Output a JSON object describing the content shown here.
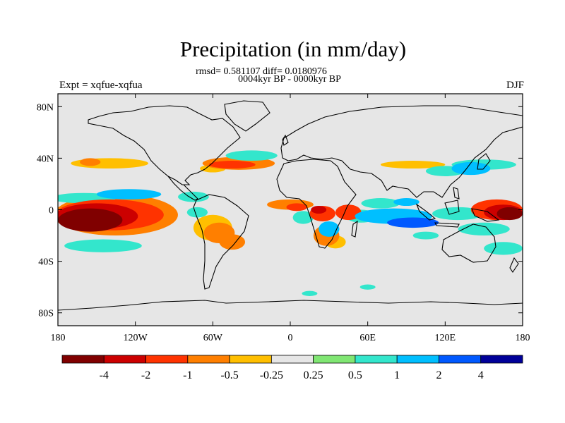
{
  "title": "Precipitation (in mm/day)",
  "subtitle": "rmsd= 0.581107 diff= 0.0180976",
  "experiment_period": "0004kyr BP - 0000kyr BP",
  "left_label": "Expt = xqfue-xqfua",
  "right_label": "DJF",
  "colors": {
    "ocean": "#e6e6e6",
    "coast": "#000000",
    "frame": "#000000"
  },
  "chart_data": {
    "type": "heatmap",
    "title": "Precipitation (in mm/day)",
    "projection": "cylindrical-equidistant",
    "lon_range": [
      -180,
      180
    ],
    "lat_range": [
      -90,
      90
    ],
    "lon_ticks": [
      {
        "value": -180,
        "label": "180"
      },
      {
        "value": -120,
        "label": "120W"
      },
      {
        "value": -60,
        "label": "60W"
      },
      {
        "value": 0,
        "label": "0"
      },
      {
        "value": 60,
        "label": "60E"
      },
      {
        "value": 120,
        "label": "120E"
      },
      {
        "value": 180,
        "label": "180"
      }
    ],
    "lat_ticks": [
      {
        "value": 80,
        "label": "80N"
      },
      {
        "value": 40,
        "label": "40N"
      },
      {
        "value": 0,
        "label": "0"
      },
      {
        "value": -40,
        "label": "40S"
      },
      {
        "value": -80,
        "label": "80S"
      }
    ],
    "colorbar": {
      "colors": [
        "#800000",
        "#cc0000",
        "#ff3300",
        "#ff7f00",
        "#ffbf00",
        "#e6e6e6",
        "#80e673",
        "#33e6cc",
        "#00bfff",
        "#0059ff",
        "#000099"
      ],
      "labels": [
        "-4",
        "-2",
        "-1",
        "-0.5",
        "-0.25",
        "0.25",
        "0.5",
        "1",
        "2",
        "4"
      ]
    },
    "anomaly_regions": [
      {
        "lon": -155,
        "lat": -8,
        "rx": 25,
        "ry": 9,
        "level": -4
      },
      {
        "lon": -150,
        "lat": -5,
        "rx": 32,
        "ry": 10,
        "level": -2
      },
      {
        "lon": -140,
        "lat": -4,
        "rx": 42,
        "ry": 12,
        "level": -1
      },
      {
        "lon": -135,
        "lat": -4,
        "rx": 48,
        "ry": 16,
        "level": -0.5
      },
      {
        "lon": -160,
        "lat": 9,
        "rx": 25,
        "ry": 4,
        "level": 0.5
      },
      {
        "lon": -125,
        "lat": 12,
        "rx": 25,
        "ry": 4,
        "level": 1
      },
      {
        "lon": -145,
        "lat": -28,
        "rx": 30,
        "ry": 5,
        "level": 0.5
      },
      {
        "lon": -140,
        "lat": 36,
        "rx": 30,
        "ry": 4,
        "level": -0.25
      },
      {
        "lon": -155,
        "lat": 37,
        "rx": 8,
        "ry": 3,
        "level": -0.5
      },
      {
        "lon": -40,
        "lat": 36,
        "rx": 28,
        "ry": 5,
        "level": -0.5
      },
      {
        "lon": -45,
        "lat": 35,
        "rx": 18,
        "ry": 3,
        "level": -1
      },
      {
        "lon": -30,
        "lat": 42,
        "rx": 20,
        "ry": 4,
        "level": 0.5
      },
      {
        "lon": -60,
        "lat": 32,
        "rx": 10,
        "ry": 3,
        "level": -0.25
      },
      {
        "lon": -60,
        "lat": -14,
        "rx": 15,
        "ry": 10,
        "level": -0.25
      },
      {
        "lon": -55,
        "lat": -18,
        "rx": 12,
        "ry": 8,
        "level": -0.5
      },
      {
        "lon": -45,
        "lat": -25,
        "rx": 10,
        "ry": 6,
        "level": -0.5
      },
      {
        "lon": -72,
        "lat": -2,
        "rx": 8,
        "ry": 4,
        "level": 0.5
      },
      {
        "lon": -75,
        "lat": 10,
        "rx": 12,
        "ry": 4,
        "level": 0.5
      },
      {
        "lon": 0,
        "lat": 4,
        "rx": 18,
        "ry": 4,
        "level": -0.5
      },
      {
        "lon": 5,
        "lat": 2,
        "rx": 8,
        "ry": 3,
        "level": -1
      },
      {
        "lon": 25,
        "lat": -3,
        "rx": 10,
        "ry": 6,
        "level": -1
      },
      {
        "lon": 22,
        "lat": 0,
        "rx": 6,
        "ry": 3,
        "level": -2
      },
      {
        "lon": 10,
        "lat": -6,
        "rx": 8,
        "ry": 5,
        "level": 0.5
      },
      {
        "lon": 30,
        "lat": -15,
        "rx": 8,
        "ry": 6,
        "level": 1
      },
      {
        "lon": 28,
        "lat": -20,
        "rx": 10,
        "ry": 8,
        "level": -0.5
      },
      {
        "lon": 35,
        "lat": -25,
        "rx": 8,
        "ry": 5,
        "level": -0.25
      },
      {
        "lon": 45,
        "lat": -2,
        "rx": 10,
        "ry": 6,
        "level": -1
      },
      {
        "lon": 55,
        "lat": -5,
        "rx": 12,
        "ry": 5,
        "level": 0.5
      },
      {
        "lon": 80,
        "lat": -5,
        "rx": 30,
        "ry": 6,
        "level": 1
      },
      {
        "lon": 95,
        "lat": -10,
        "rx": 20,
        "ry": 4,
        "level": 2
      },
      {
        "lon": 70,
        "lat": 5,
        "rx": 15,
        "ry": 4,
        "level": 0.5
      },
      {
        "lon": 90,
        "lat": 6,
        "rx": 10,
        "ry": 3,
        "level": 1
      },
      {
        "lon": 105,
        "lat": -20,
        "rx": 10,
        "ry": 3,
        "level": 0.5
      },
      {
        "lon": 95,
        "lat": 35,
        "rx": 25,
        "ry": 3,
        "level": -0.25
      },
      {
        "lon": 120,
        "lat": 30,
        "rx": 15,
        "ry": 4,
        "level": 0.5
      },
      {
        "lon": 140,
        "lat": 32,
        "rx": 15,
        "ry": 5,
        "level": 1
      },
      {
        "lon": 150,
        "lat": 35,
        "rx": 25,
        "ry": 4,
        "level": 0.5
      },
      {
        "lon": 160,
        "lat": 0,
        "rx": 20,
        "ry": 8,
        "level": -1
      },
      {
        "lon": 165,
        "lat": -2,
        "rx": 15,
        "ry": 6,
        "level": -2
      },
      {
        "lon": 170,
        "lat": -3,
        "rx": 10,
        "ry": 5,
        "level": -4
      },
      {
        "lon": 130,
        "lat": -3,
        "rx": 20,
        "ry": 5,
        "level": 0.5
      },
      {
        "lon": 150,
        "lat": -15,
        "rx": 20,
        "ry": 5,
        "level": 0.5
      },
      {
        "lon": 165,
        "lat": -30,
        "rx": 15,
        "ry": 5,
        "level": 0.5
      },
      {
        "lon": 15,
        "lat": -65,
        "rx": 6,
        "ry": 2,
        "level": 0.5
      },
      {
        "lon": 60,
        "lat": -60,
        "rx": 6,
        "ry": 2,
        "level": 0.5
      }
    ]
  }
}
